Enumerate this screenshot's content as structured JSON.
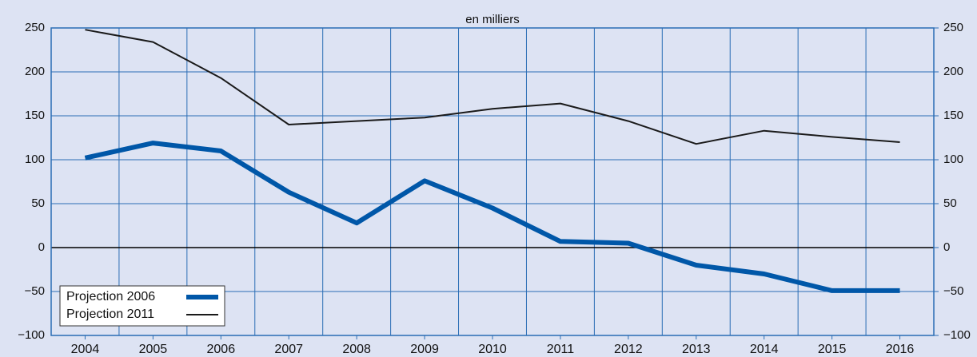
{
  "chart_data": {
    "type": "line",
    "title": "en milliers",
    "categories": [
      "2004",
      "2005",
      "2006",
      "2007",
      "2008",
      "2009",
      "2010",
      "2011",
      "2012",
      "2013",
      "2014",
      "2015",
      "2016"
    ],
    "series": [
      {
        "name": "Projection 2006",
        "color": "#0057a8",
        "values": [
          102,
          119,
          110,
          63,
          28,
          76,
          45,
          7,
          5,
          -20,
          -30,
          -49,
          -49
        ]
      },
      {
        "name": "Projection 2011",
        "color": "#1a1a1a",
        "values": [
          248,
          234,
          193,
          140,
          144,
          148,
          158,
          164,
          144,
          118,
          133,
          126,
          120
        ]
      }
    ],
    "ylim": [
      -100,
      250
    ],
    "yticks": [
      {
        "value": -100,
        "label": "−100"
      },
      {
        "value": -50,
        "label": "−50"
      },
      0,
      50,
      100,
      150,
      200,
      250
    ],
    "y2lim": [
      -100,
      250
    ],
    "y2ticks": [
      {
        "value": -100,
        "label": "−100"
      },
      {
        "value": -50,
        "label": "−50"
      },
      0,
      50,
      100,
      150,
      200,
      250
    ],
    "grid": true,
    "legend": "lower left"
  }
}
